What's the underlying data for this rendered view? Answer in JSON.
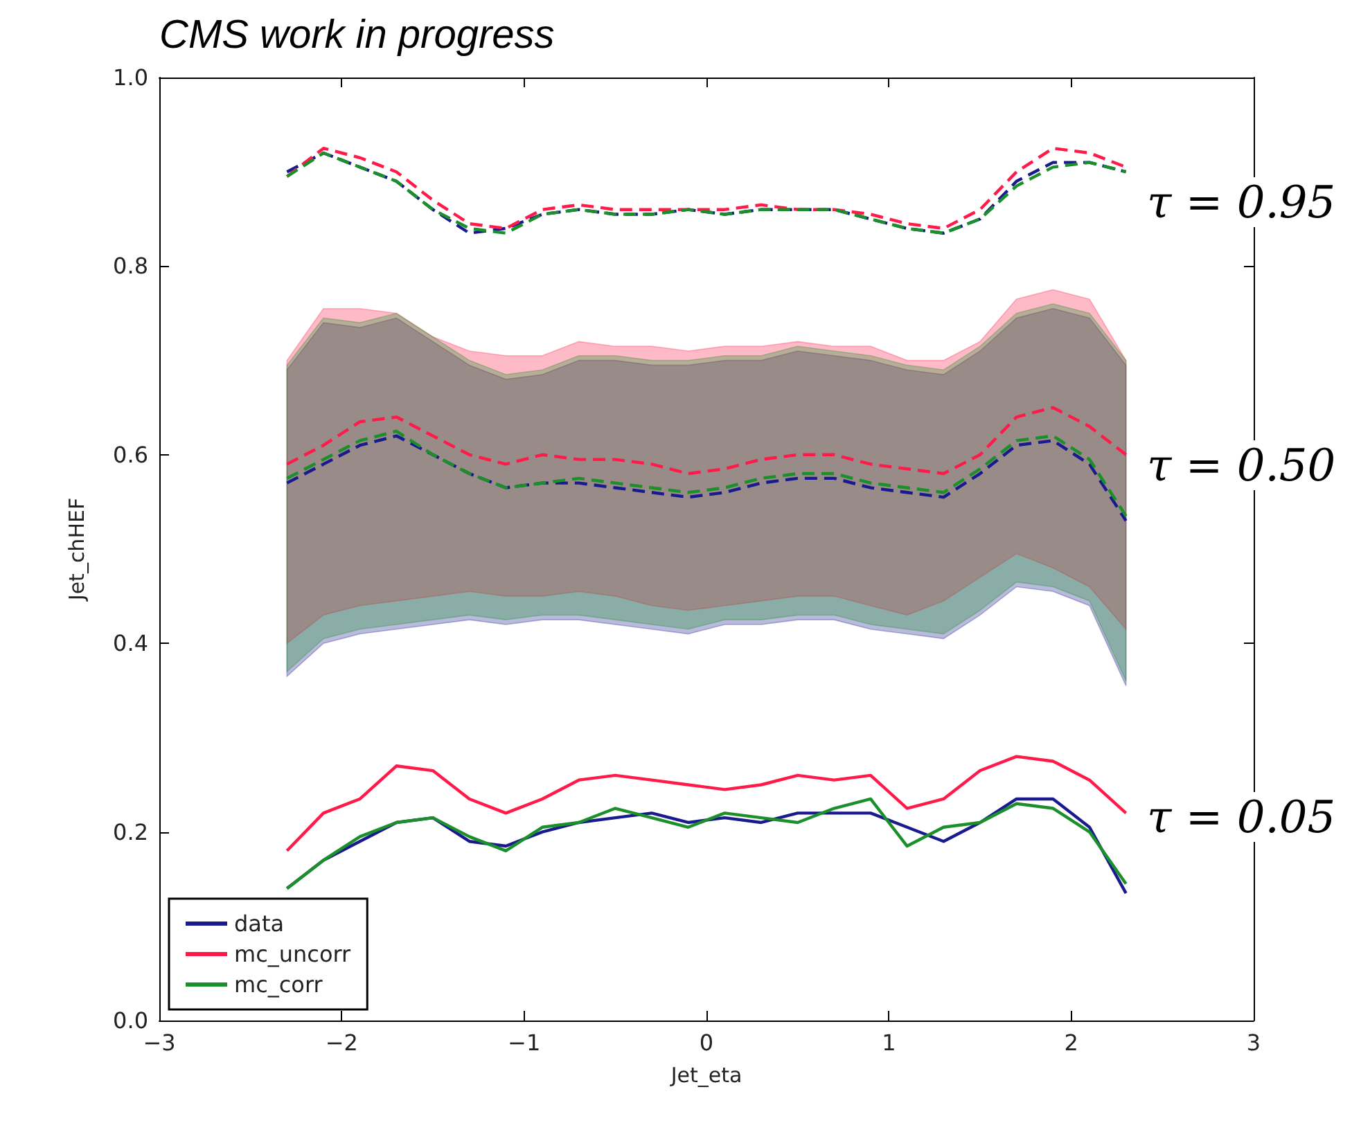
{
  "chart_data": {
    "type": "line",
    "title": "CMS work in progress",
    "xlabel": "Jet_eta",
    "ylabel": "Jet_chHEF",
    "x": [
      -2.3,
      -2.1,
      -1.9,
      -1.7,
      -1.5,
      -1.3,
      -1.1,
      -0.9,
      -0.7,
      -0.5,
      -0.3,
      -0.1,
      0.1,
      0.3,
      0.5,
      0.7,
      0.9,
      1.1,
      1.3,
      1.5,
      1.7,
      1.9,
      2.1,
      2.3
    ],
    "xlim": [
      -3,
      3
    ],
    "xticks": [
      {
        "value": -3,
        "label": "−3"
      },
      {
        "value": -2,
        "label": "−2"
      },
      {
        "value": -1,
        "label": "−1"
      },
      0,
      1,
      2,
      3
    ],
    "ylim": [
      0,
      1
    ],
    "yticks": [
      {
        "value": 0,
        "label": "0.0"
      },
      0.2,
      0.4,
      0.6,
      0.8,
      {
        "value": 1,
        "label": "1.0"
      }
    ],
    "grid": false,
    "legend": "bottom left",
    "marker": "none",
    "series": [
      {
        "name": "data",
        "color": "#1a1a8f",
        "line_style": "solid",
        "values": [
          0.14,
          0.17,
          0.19,
          0.21,
          0.215,
          0.19,
          0.185,
          0.2,
          0.21,
          0.215,
          0.22,
          0.21,
          0.215,
          0.21,
          0.22,
          0.22,
          0.22,
          0.205,
          0.19,
          0.21,
          0.235,
          0.235,
          0.205,
          0.135
        ]
      },
      {
        "name": "mc_uncorr",
        "color": "#ff1a4a",
        "line_style": "solid",
        "values": [
          0.18,
          0.22,
          0.235,
          0.27,
          0.265,
          0.235,
          0.22,
          0.235,
          0.255,
          0.26,
          0.255,
          0.25,
          0.245,
          0.25,
          0.26,
          0.255,
          0.26,
          0.225,
          0.235,
          0.265,
          0.28,
          0.275,
          0.255,
          0.22
        ]
      },
      {
        "name": "mc_corr",
        "color": "#1a8f2a",
        "line_style": "solid",
        "values": [
          0.14,
          0.17,
          0.195,
          0.21,
          0.215,
          0.195,
          0.18,
          0.205,
          0.21,
          0.225,
          0.215,
          0.205,
          0.22,
          0.215,
          0.21,
          0.225,
          0.235,
          0.185,
          0.205,
          0.21,
          0.23,
          0.225,
          0.2,
          0.145
        ]
      },
      {
        "color": "#1a1a8f",
        "line_style": "dashed",
        "values": [
          0.57,
          0.59,
          0.61,
          0.62,
          0.6,
          0.58,
          0.565,
          0.57,
          0.57,
          0.565,
          0.56,
          0.555,
          0.56,
          0.57,
          0.575,
          0.575,
          0.565,
          0.56,
          0.555,
          0.58,
          0.61,
          0.615,
          0.59,
          0.53
        ],
        "lower": [
          0.365,
          0.4,
          0.41,
          0.415,
          0.42,
          0.425,
          0.42,
          0.425,
          0.425,
          0.42,
          0.415,
          0.41,
          0.42,
          0.42,
          0.425,
          0.425,
          0.415,
          0.41,
          0.405,
          0.43,
          0.46,
          0.455,
          0.44,
          0.355
        ],
        "upper": [
          0.69,
          0.74,
          0.735,
          0.745,
          0.72,
          0.695,
          0.68,
          0.685,
          0.7,
          0.7,
          0.695,
          0.695,
          0.7,
          0.7,
          0.71,
          0.705,
          0.7,
          0.69,
          0.685,
          0.71,
          0.745,
          0.755,
          0.745,
          0.695
        ]
      },
      {
        "color": "#ff1a4a",
        "line_style": "dashed",
        "values": [
          0.59,
          0.61,
          0.635,
          0.64,
          0.62,
          0.6,
          0.59,
          0.6,
          0.595,
          0.595,
          0.59,
          0.58,
          0.585,
          0.595,
          0.6,
          0.6,
          0.59,
          0.585,
          0.58,
          0.6,
          0.64,
          0.65,
          0.63,
          0.6
        ],
        "lower": [
          0.4,
          0.43,
          0.44,
          0.445,
          0.45,
          0.455,
          0.45,
          0.45,
          0.455,
          0.45,
          0.44,
          0.435,
          0.44,
          0.445,
          0.45,
          0.45,
          0.44,
          0.43,
          0.445,
          0.47,
          0.495,
          0.48,
          0.46,
          0.415
        ],
        "upper": [
          0.7,
          0.755,
          0.755,
          0.75,
          0.725,
          0.71,
          0.705,
          0.705,
          0.72,
          0.715,
          0.715,
          0.71,
          0.715,
          0.715,
          0.72,
          0.715,
          0.715,
          0.7,
          0.7,
          0.72,
          0.765,
          0.775,
          0.765,
          0.7
        ]
      },
      {
        "color": "#1a8f2a",
        "line_style": "dashed",
        "values": [
          0.575,
          0.595,
          0.615,
          0.625,
          0.6,
          0.58,
          0.565,
          0.57,
          0.575,
          0.57,
          0.565,
          0.56,
          0.565,
          0.575,
          0.58,
          0.58,
          0.57,
          0.565,
          0.56,
          0.585,
          0.615,
          0.62,
          0.595,
          0.535
        ],
        "lower": [
          0.37,
          0.405,
          0.415,
          0.42,
          0.425,
          0.43,
          0.425,
          0.43,
          0.43,
          0.425,
          0.42,
          0.415,
          0.425,
          0.425,
          0.43,
          0.43,
          0.42,
          0.415,
          0.41,
          0.435,
          0.465,
          0.46,
          0.445,
          0.36
        ],
        "upper": [
          0.695,
          0.745,
          0.74,
          0.75,
          0.725,
          0.7,
          0.685,
          0.69,
          0.705,
          0.705,
          0.7,
          0.7,
          0.705,
          0.705,
          0.715,
          0.71,
          0.705,
          0.695,
          0.69,
          0.715,
          0.75,
          0.76,
          0.75,
          0.7
        ]
      },
      {
        "color": "#1a1a8f",
        "line_style": "dashed",
        "values": [
          0.9,
          0.92,
          0.905,
          0.89,
          0.86,
          0.835,
          0.84,
          0.855,
          0.86,
          0.855,
          0.855,
          0.86,
          0.855,
          0.86,
          0.86,
          0.86,
          0.85,
          0.84,
          0.835,
          0.85,
          0.89,
          0.91,
          0.91,
          0.9
        ]
      },
      {
        "color": "#ff1a4a",
        "line_style": "dashed",
        "values": [
          0.895,
          0.925,
          0.915,
          0.9,
          0.87,
          0.845,
          0.84,
          0.86,
          0.865,
          0.86,
          0.86,
          0.86,
          0.86,
          0.865,
          0.86,
          0.86,
          0.855,
          0.845,
          0.84,
          0.86,
          0.9,
          0.925,
          0.92,
          0.905
        ]
      },
      {
        "color": "#1a8f2a",
        "line_style": "dashed",
        "values": [
          0.895,
          0.92,
          0.905,
          0.89,
          0.86,
          0.84,
          0.835,
          0.855,
          0.86,
          0.855,
          0.855,
          0.86,
          0.855,
          0.86,
          0.86,
          0.86,
          0.85,
          0.84,
          0.835,
          0.85,
          0.885,
          0.905,
          0.91,
          0.9
        ]
      }
    ],
    "annotations": [
      "τ = 0.95",
      "τ = 0.50",
      "τ = 0.05"
    ]
  }
}
